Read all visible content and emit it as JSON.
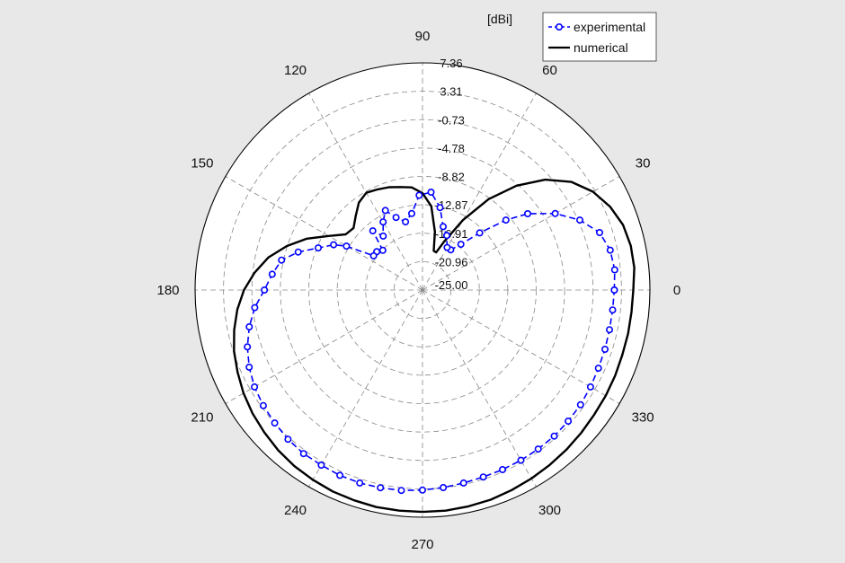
{
  "chart_data": {
    "type": "polar",
    "unit": "[dBi]",
    "r_ticks": [
      "7.36",
      "3.31",
      "-0.73",
      "-4.78",
      "-8.82",
      "-12.87",
      "-16.91",
      "-20.96",
      "-25.00"
    ],
    "r_min": -25.0,
    "r_max": 7.36,
    "angle_ticks": [
      0,
      30,
      60,
      90,
      120,
      150,
      180,
      210,
      240,
      270,
      300,
      330
    ],
    "grid": true,
    "legend_position": "top-right",
    "series": [
      {
        "name": "experimental",
        "color": "#0000ff",
        "style": "dashed-circle-markers",
        "points": [
          [
            0,
            2.3
          ],
          [
            6,
            2.5
          ],
          [
            12,
            2.3
          ],
          [
            18,
            1.5
          ],
          [
            24,
            -0.5
          ],
          [
            30,
            -3.2
          ],
          [
            36,
            -6.5
          ],
          [
            40,
            -9.5
          ],
          [
            45,
            -13.5
          ],
          [
            50,
            -16.5
          ],
          [
            55,
            -18.0
          ],
          [
            60,
            -18.0
          ],
          [
            66,
            -16.5
          ],
          [
            72,
            -15.5
          ],
          [
            78,
            -13.0
          ],
          [
            85,
            -11.0
          ],
          [
            92,
            -11.5
          ],
          [
            98,
            -14.0
          ],
          [
            104,
            -15.0
          ],
          [
            110,
            -14.0
          ],
          [
            115,
            -12.5
          ],
          [
            120,
            -13.8
          ],
          [
            126,
            -15.5
          ],
          [
            130,
            -14.0
          ],
          [
            135,
            -17.0
          ],
          [
            140,
            -16.5
          ],
          [
            145,
            -16.5
          ],
          [
            150,
            -12.5
          ],
          [
            153,
            -10.8
          ],
          [
            158,
            -9.0
          ],
          [
            163,
            -6.5
          ],
          [
            168,
            -4.5
          ],
          [
            174,
            -3.5
          ],
          [
            180,
            -2.5
          ],
          [
            186,
            -1.0
          ],
          [
            192,
            0.2
          ],
          [
            198,
            1.2
          ],
          [
            204,
            2.0
          ],
          [
            210,
            2.6
          ],
          [
            216,
            3.0
          ],
          [
            222,
            3.3
          ],
          [
            228,
            3.6
          ],
          [
            234,
            3.8
          ],
          [
            240,
            3.8
          ],
          [
            246,
            3.9
          ],
          [
            252,
            3.9
          ],
          [
            258,
            3.8
          ],
          [
            264,
            3.7
          ],
          [
            270,
            3.5
          ],
          [
            276,
            3.3
          ],
          [
            282,
            3.1
          ],
          [
            288,
            3.0
          ],
          [
            294,
            3.0
          ],
          [
            300,
            3.0
          ],
          [
            306,
            3.0
          ],
          [
            312,
            3.0
          ],
          [
            318,
            2.9
          ],
          [
            324,
            2.8
          ],
          [
            330,
            2.6
          ],
          [
            336,
            2.4
          ],
          [
            342,
            2.3
          ],
          [
            348,
            2.2
          ],
          [
            354,
            2.2
          ],
          [
            360,
            2.3
          ]
        ]
      },
      {
        "name": "numerical",
        "color": "#000000",
        "style": "solid",
        "points": [
          [
            0,
            5.0
          ],
          [
            6,
            5.3
          ],
          [
            12,
            5.3
          ],
          [
            18,
            5.0
          ],
          [
            24,
            4.2
          ],
          [
            30,
            3.0
          ],
          [
            36,
            1.2
          ],
          [
            42,
            -1.5
          ],
          [
            48,
            -5.0
          ],
          [
            54,
            -9.0
          ],
          [
            60,
            -13.5
          ],
          [
            66,
            -17.5
          ],
          [
            70,
            -19.3
          ],
          [
            74,
            -19.2
          ],
          [
            78,
            -16.5
          ],
          [
            84,
            -13.0
          ],
          [
            90,
            -11.2
          ],
          [
            96,
            -10.3
          ],
          [
            102,
            -10.0
          ],
          [
            108,
            -9.6
          ],
          [
            114,
            -9.3
          ],
          [
            120,
            -9.0
          ],
          [
            126,
            -9.6
          ],
          [
            132,
            -10.8
          ],
          [
            138,
            -11.8
          ],
          [
            144,
            -11.5
          ],
          [
            150,
            -9.6
          ],
          [
            156,
            -7.0
          ],
          [
            162,
            -4.7
          ],
          [
            168,
            -2.6
          ],
          [
            174,
            -1.0
          ],
          [
            180,
            0.4
          ],
          [
            186,
            1.5
          ],
          [
            192,
            2.4
          ],
          [
            198,
            3.2
          ],
          [
            204,
            3.8
          ],
          [
            210,
            4.4
          ],
          [
            216,
            4.9
          ],
          [
            222,
            5.3
          ],
          [
            228,
            5.7
          ],
          [
            234,
            6.0
          ],
          [
            240,
            6.2
          ],
          [
            246,
            6.4
          ],
          [
            252,
            6.5
          ],
          [
            258,
            6.6
          ],
          [
            264,
            6.6
          ],
          [
            270,
            6.6
          ],
          [
            276,
            6.6
          ],
          [
            282,
            6.5
          ],
          [
            288,
            6.4
          ],
          [
            294,
            6.2
          ],
          [
            300,
            6.0
          ],
          [
            306,
            5.8
          ],
          [
            312,
            5.6
          ],
          [
            318,
            5.4
          ],
          [
            324,
            5.2
          ],
          [
            330,
            5.1
          ],
          [
            336,
            5.0
          ],
          [
            342,
            4.9
          ],
          [
            348,
            4.9
          ],
          [
            354,
            4.9
          ],
          [
            360,
            5.0
          ]
        ]
      }
    ]
  }
}
